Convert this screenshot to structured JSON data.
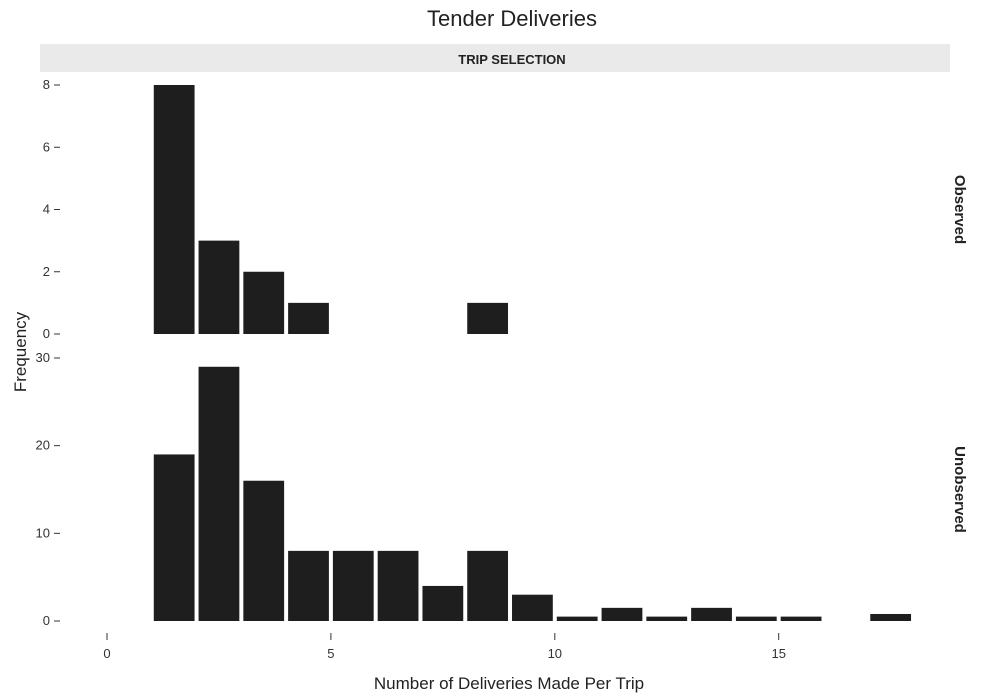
{
  "chart_data": {
    "type": "bar",
    "title": "Tender Deliveries",
    "subtitle": "TRIP SELECTION",
    "xlabel": "Number of Deliveries Made Per Trip",
    "ylabel": "Frequency",
    "xlim": [
      0,
      18.2
    ],
    "x_ticks": [
      0,
      5,
      10,
      15
    ],
    "grid": false,
    "facets": [
      {
        "name": "Observed",
        "ylim": [
          0,
          8
        ],
        "y_ticks": [
          0,
          2,
          4,
          6,
          8
        ],
        "y_tick_labels": [
          "0",
          "2",
          "4",
          "6",
          "8"
        ],
        "bins": [
          {
            "x0": 1,
            "x1": 2,
            "value": 8
          },
          {
            "x0": 2,
            "x1": 3,
            "value": 3
          },
          {
            "x0": 3,
            "x1": 4,
            "value": 2
          },
          {
            "x0": 4,
            "x1": 5,
            "value": 1
          },
          {
            "x0": 8,
            "x1": 9,
            "value": 1
          }
        ]
      },
      {
        "name": "Unobserved",
        "ylim": [
          0,
          30
        ],
        "y_ticks": [
          0,
          10,
          20,
          30
        ],
        "y_tick_labels": [
          "0",
          "10",
          "20",
          "30"
        ],
        "bins": [
          {
            "x0": 1,
            "x1": 2,
            "value": 19
          },
          {
            "x0": 2,
            "x1": 3,
            "value": 29
          },
          {
            "x0": 3,
            "x1": 4,
            "value": 16
          },
          {
            "x0": 4,
            "x1": 5,
            "value": 8
          },
          {
            "x0": 5,
            "x1": 6,
            "value": 8
          },
          {
            "x0": 6,
            "x1": 7,
            "value": 8
          },
          {
            "x0": 7,
            "x1": 8,
            "value": 4
          },
          {
            "x0": 8,
            "x1": 9,
            "value": 8
          },
          {
            "x0": 9,
            "x1": 10,
            "value": 3
          },
          {
            "x0": 10,
            "x1": 11,
            "value": 0.5
          },
          {
            "x0": 11,
            "x1": 12,
            "value": 1.5
          },
          {
            "x0": 12,
            "x1": 13,
            "value": 0.5
          },
          {
            "x0": 13,
            "x1": 14,
            "value": 1.5
          },
          {
            "x0": 14,
            "x1": 15,
            "value": 0.5
          },
          {
            "x0": 15,
            "x1": 16,
            "value": 0.5
          },
          {
            "x0": 17,
            "x1": 18,
            "value": 0.8
          }
        ]
      }
    ]
  }
}
